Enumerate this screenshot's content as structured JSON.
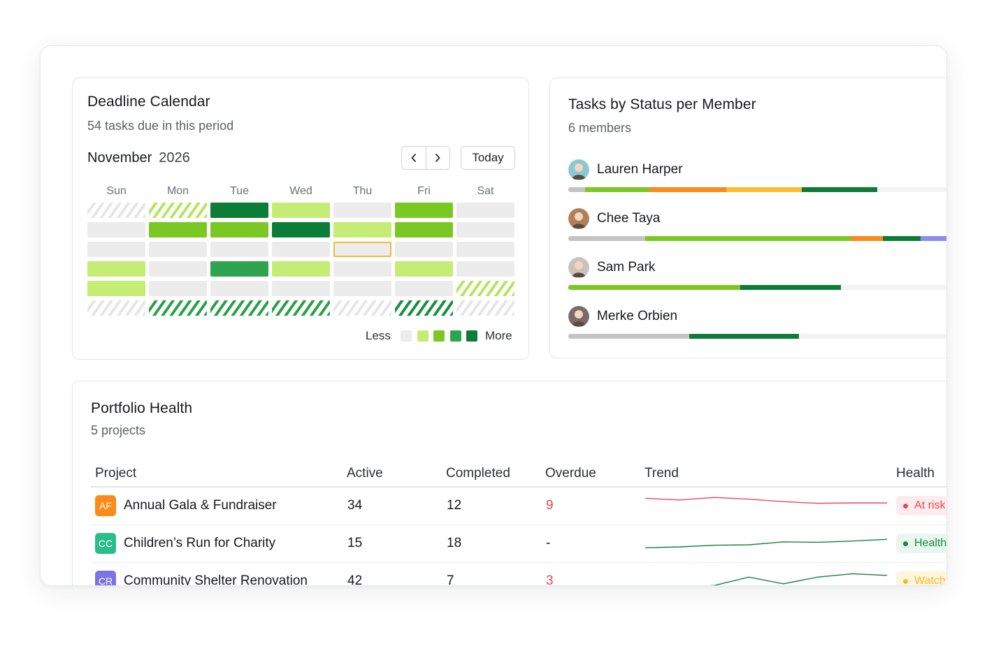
{
  "calendar": {
    "title": "Deadline Calendar",
    "subtitle": "54 tasks due in this period",
    "month": "November",
    "year": "2026",
    "prev_icon": "chevron-left-icon",
    "next_icon": "chevron-right-icon",
    "today_label": "Today",
    "weekdays": [
      "Sun",
      "Mon",
      "Tue",
      "Wed",
      "Thu",
      "Fri",
      "Sat"
    ],
    "weeks": [
      [
        "pad",
        "pad-light",
        "l4",
        "l1",
        "l0",
        "l2",
        "l0"
      ],
      [
        "l0",
        "l2",
        "l2",
        "l4",
        "l1",
        "l2",
        "l0"
      ],
      [
        "l0",
        "l0",
        "l0",
        "l0",
        "today",
        "l0",
        "l0"
      ],
      [
        "l1",
        "l0",
        "l3",
        "l1",
        "l0",
        "l1",
        "l0"
      ],
      [
        "l1",
        "l0",
        "l0",
        "l0",
        "l0",
        "l0",
        "pad-light"
      ],
      [
        "pad",
        "pad-mid",
        "pad-mid",
        "pad-mid",
        "pad",
        "pad-dark",
        "pad"
      ]
    ],
    "legend": {
      "less": "Less",
      "more": "More",
      "colors": [
        "#ececec",
        "#c5ec74",
        "#7bc824",
        "#2ea44f",
        "#0c7d36"
      ]
    }
  },
  "tasks": {
    "title": "Tasks by Status per Member",
    "subtitle": "6 members",
    "status_colors": {
      "gray": "#c4c4c4",
      "green": "#7bc824",
      "orange": "#fb8a1b",
      "yellow": "#fbbd2f",
      "dark": "#0c7d36",
      "purple": "#8b8cf0"
    },
    "members": [
      {
        "name": "Lauren Harper",
        "avatar_bg": "#8cc8d4",
        "segments": [
          [
            "gray",
            4
          ],
          [
            "green",
            15.3
          ],
          [
            "orange",
            18.4
          ],
          [
            "yellow",
            17.9
          ],
          [
            "dark",
            18
          ]
        ]
      },
      {
        "name": "Chee Taya",
        "avatar_bg": "#b08058",
        "segments": [
          [
            "gray",
            18.4
          ],
          [
            "green",
            49
          ],
          [
            "orange",
            7.6
          ],
          [
            "dark",
            9
          ],
          [
            "purple",
            7
          ]
        ]
      },
      {
        "name": "Sam Park",
        "avatar_bg": "#c9c3b9",
        "segments": [
          [
            "green",
            41
          ],
          [
            "dark",
            24
          ]
        ]
      },
      {
        "name": "Merke Orbien",
        "avatar_bg": "#7a6a6a",
        "segments": [
          [
            "gray",
            28.8
          ],
          [
            "dark",
            26.2
          ]
        ]
      }
    ]
  },
  "portfolio": {
    "title": "Portfolio Health",
    "subtitle": "5 projects",
    "columns": [
      "Project",
      "Active",
      "Completed",
      "Overdue",
      "Trend",
      "Health"
    ],
    "rows": [
      {
        "initials": "AF",
        "badge_color": "#fb8a1b",
        "name": "Annual Gala & Fundraiser",
        "active": "34",
        "completed": "12",
        "overdue": "9",
        "overdue_red": true,
        "trend_color": "#e5485d",
        "trend": [
          18,
          16,
          19,
          17,
          14,
          12,
          12.5,
          12.5
        ],
        "health": "At risk",
        "health_fg": "#e5484d",
        "health_bg": "#fdecee"
      },
      {
        "initials": "CC",
        "badge_color": "#2bbd8c",
        "name": "Children’s Run for Charity",
        "active": "15",
        "completed": "18",
        "overdue": "-",
        "overdue_red": false,
        "trend_color": "#12843a",
        "trend": [
          4,
          5,
          7,
          7.5,
          11,
          10.5,
          12,
          14
        ],
        "health": "Healthy",
        "health_fg": "#16883f",
        "health_bg": "#e9f7ee"
      },
      {
        "initials": "CR",
        "badge_color": "#7a74e6",
        "name": "Community Shelter Renovation",
        "active": "42",
        "completed": "7",
        "overdue": "3",
        "overdue_red": true,
        "trend_color": "#12843a",
        "trend": [
          0,
          0.5,
          4,
          14,
          6,
          14,
          18,
          16
        ],
        "health": "Watch",
        "health_fg": "#f4ba2c",
        "health_bg": "#fdf6dd"
      }
    ]
  }
}
